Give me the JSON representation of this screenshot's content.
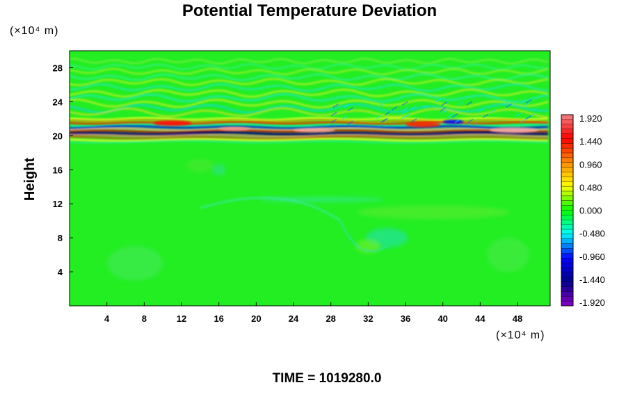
{
  "chart_data": {
    "type": "heatmap",
    "title": "Potential Temperature Deviation",
    "ylabel": "Height",
    "xlabel": "",
    "y_unit": "(×10⁴ m)",
    "x_unit": "(×10⁴ m)",
    "xlim": [
      0,
      51.5
    ],
    "ylim": [
      0,
      30
    ],
    "x_ticks": [
      "4",
      "8",
      "12",
      "16",
      "20",
      "24",
      "28",
      "32",
      "36",
      "40",
      "44",
      "48"
    ],
    "y_ticks": [
      "4",
      "8",
      "12",
      "16",
      "20",
      "24",
      "28"
    ],
    "colorbar": {
      "min": -1.92,
      "max": 1.92,
      "tick_labels": [
        "1.920",
        "1.440",
        "0.960",
        "0.480",
        "0.000",
        "-0.480",
        "-0.960",
        "-1.440",
        "-1.920"
      ],
      "colors": [
        "#f08080",
        "#ff0000",
        "#ff8c00",
        "#ffff00",
        "#00ff00",
        "#00ffff",
        "#0000ff",
        "#00008b",
        "#8a00c8"
      ]
    },
    "features": {
      "background_value": 0.0,
      "main_band_height": 20.5,
      "band_value_range": [
        -1.92,
        1.92
      ]
    },
    "footer": "TIME = 1019280.0"
  }
}
